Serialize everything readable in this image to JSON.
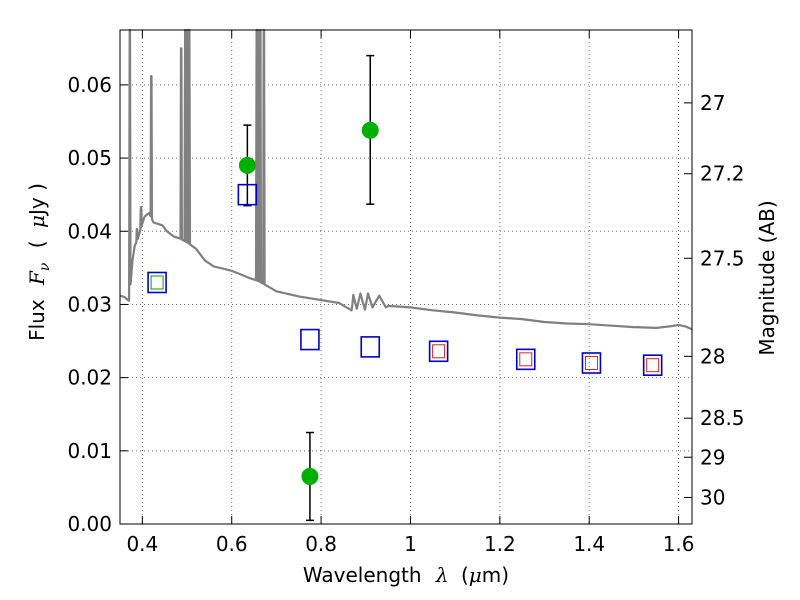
{
  "chart_data": {
    "type": "scatter",
    "title": "",
    "xlabel": {
      "prefix": "Wavelength",
      "symbol": "λ",
      "unit_open": "(",
      "unit_mu": "μ",
      "unit_rest": "m)"
    },
    "ylabel": {
      "prefix": "Flux",
      "symbol_main": "F",
      "symbol_sub": "ν",
      "unit_open": "(",
      "unit_mu": "μ",
      "unit_rest": "Jy )"
    },
    "y2label": "Magnitude (AB)",
    "xlim": [
      0.35,
      1.63
    ],
    "ylim": [
      0.0,
      0.0675
    ],
    "grid": true,
    "x_ticks": [
      0.4,
      0.6,
      0.8,
      1.0,
      1.2,
      1.4,
      1.6
    ],
    "x_tick_labels": [
      "0.4",
      "0.6",
      "0.8",
      "1",
      "1.2",
      "1.4",
      "1.6"
    ],
    "y_ticks": [
      0.0,
      0.01,
      0.02,
      0.03,
      0.04,
      0.05,
      0.06
    ],
    "y_tick_labels": [
      "0.00",
      "0.01",
      "0.02",
      "0.03",
      "0.04",
      "0.05",
      "0.06"
    ],
    "y2_ticks": [
      27,
      27.2,
      27.5,
      28,
      28.5,
      29,
      30
    ],
    "y2_tick_labels": [
      "27",
      "27.2",
      "27.5",
      "28",
      "28.5",
      "29",
      "30"
    ],
    "model_spectrum": {
      "color": "#808080",
      "points": [
        [
          0.35,
          0.0312
        ],
        [
          0.36,
          0.031
        ],
        [
          0.37,
          0.0305
        ],
        [
          0.374,
          0.033
        ],
        [
          0.378,
          0.036
        ],
        [
          0.383,
          0.038
        ],
        [
          0.39,
          0.039
        ],
        [
          0.397,
          0.0405
        ],
        [
          0.405,
          0.042
        ],
        [
          0.415,
          0.0425
        ],
        [
          0.425,
          0.0412
        ],
        [
          0.435,
          0.041
        ],
        [
          0.445,
          0.0408
        ],
        [
          0.455,
          0.04
        ],
        [
          0.47,
          0.0393
        ],
        [
          0.485,
          0.039
        ],
        [
          0.5,
          0.0385
        ],
        [
          0.52,
          0.0376
        ],
        [
          0.54,
          0.036
        ],
        [
          0.56,
          0.0352
        ],
        [
          0.58,
          0.0349
        ],
        [
          0.6,
          0.0346
        ],
        [
          0.62,
          0.0341
        ],
        [
          0.64,
          0.0336
        ],
        [
          0.66,
          0.0332
        ],
        [
          0.68,
          0.0325
        ],
        [
          0.7,
          0.0318
        ],
        [
          0.75,
          0.0311
        ],
        [
          0.8,
          0.0306
        ],
        [
          0.84,
          0.0302
        ],
        [
          0.87,
          0.03
        ],
        [
          0.9,
          0.0299
        ],
        [
          0.95,
          0.0298
        ],
        [
          1.0,
          0.0296
        ],
        [
          1.05,
          0.0292
        ],
        [
          1.1,
          0.0289
        ],
        [
          1.15,
          0.0285
        ],
        [
          1.2,
          0.0282
        ],
        [
          1.25,
          0.028
        ],
        [
          1.3,
          0.0276
        ],
        [
          1.35,
          0.0274
        ],
        [
          1.4,
          0.0273
        ],
        [
          1.45,
          0.0271
        ],
        [
          1.5,
          0.0269
        ],
        [
          1.55,
          0.0268
        ],
        [
          1.58,
          0.027
        ],
        [
          1.6,
          0.0272
        ],
        [
          1.615,
          0.027
        ],
        [
          1.63,
          0.0266
        ]
      ],
      "emission_lines": [
        {
          "x": 0.372,
          "peak": 0.0675
        },
        {
          "x": 0.388,
          "peak": 0.0403
        },
        {
          "x": 0.397,
          "peak": 0.0433
        },
        {
          "x": 0.42,
          "peak": 0.0612
        },
        {
          "x": 0.487,
          "peak": 0.065
        },
        {
          "x": 0.496,
          "peak": 0.0675
        },
        {
          "x": 0.501,
          "peak": 0.0675
        },
        {
          "x": 0.505,
          "peak": 0.0675
        },
        {
          "x": 0.656,
          "peak": 0.0675
        },
        {
          "x": 0.658,
          "peak": 0.0675
        },
        {
          "x": 0.664,
          "peak": 0.0675
        },
        {
          "x": 0.672,
          "peak": 0.0675
        }
      ],
      "absorption_features": [
        {
          "x": 0.868,
          "depth": 0.0292
        },
        {
          "x": 0.872,
          "depth": 0.0313
        },
        {
          "x": 0.88,
          "depth": 0.0294
        },
        {
          "x": 0.888,
          "depth": 0.0315
        },
        {
          "x": 0.898,
          "depth": 0.0293
        },
        {
          "x": 0.905,
          "depth": 0.0315
        },
        {
          "x": 0.915,
          "depth": 0.0296
        },
        {
          "x": 0.93,
          "depth": 0.0312
        },
        {
          "x": 0.945,
          "depth": 0.0296
        }
      ]
    },
    "series": [
      {
        "marker": "circle",
        "color": "#00b000",
        "points": [
          {
            "x": 0.635,
            "y": 0.049,
            "yerr_low": 0.0435,
            "yerr_high": 0.0545
          },
          {
            "x": 0.775,
            "y": 0.0065,
            "yerr_low": 0.0005,
            "yerr_high": 0.0125
          },
          {
            "x": 0.91,
            "y": 0.0538,
            "yerr_low": 0.0437,
            "yerr_high": 0.064
          }
        ]
      },
      {
        "marker": "open-square",
        "color": "#0000cc",
        "points": [
          {
            "x": 0.433,
            "y": 0.033
          },
          {
            "x": 0.635,
            "y": 0.045
          },
          {
            "x": 0.775,
            "y": 0.0252
          },
          {
            "x": 0.91,
            "y": 0.0242
          },
          {
            "x": 1.063,
            "y": 0.0236
          },
          {
            "x": 1.258,
            "y": 0.0225
          },
          {
            "x": 1.405,
            "y": 0.022
          },
          {
            "x": 1.542,
            "y": 0.0217
          }
        ]
      },
      {
        "marker": "open-square-small",
        "color": "#dd2222",
        "points": [
          {
            "x": 1.063,
            "y": 0.0236
          },
          {
            "x": 1.258,
            "y": 0.0225
          },
          {
            "x": 1.405,
            "y": 0.022
          },
          {
            "x": 1.542,
            "y": 0.0217
          }
        ]
      },
      {
        "marker": "open-square-small",
        "color": "#00a000",
        "points": [
          {
            "x": 0.433,
            "y": 0.033
          }
        ]
      }
    ]
  }
}
